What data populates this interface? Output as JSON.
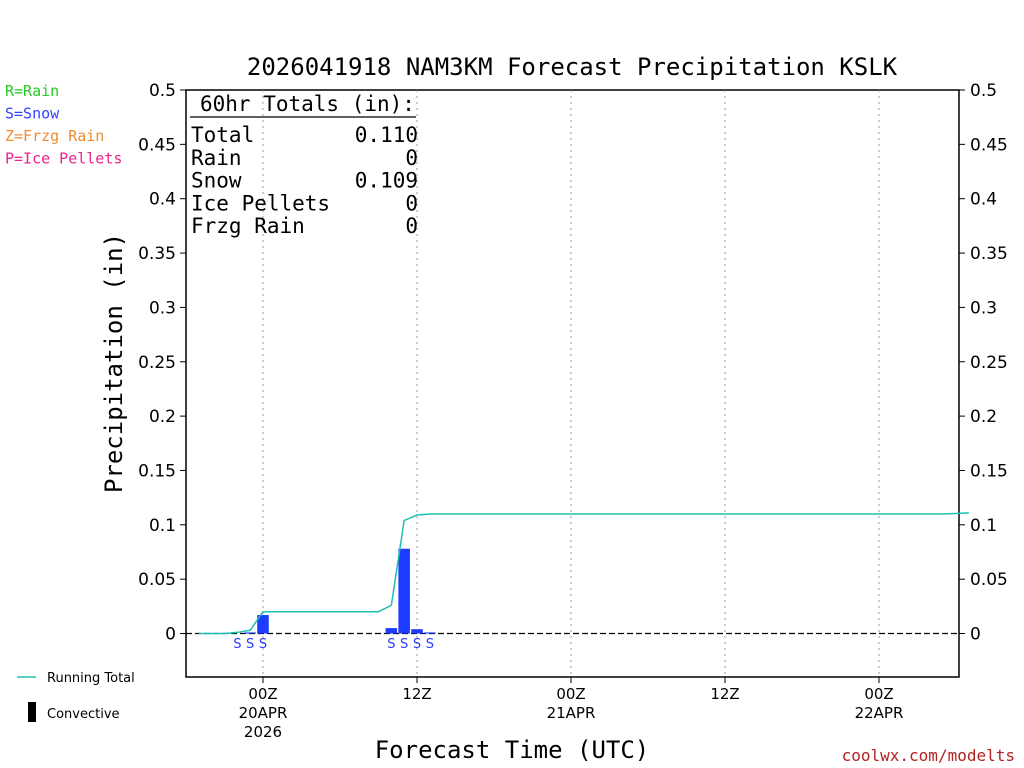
{
  "chart_data": {
    "type": "bar",
    "title": "2026041918 NAM3KM Forecast Precipitation KSLK",
    "xlabel": "Forecast Time (UTC)",
    "ylabel": "Precipitation (in)",
    "ylim": [
      -0.04,
      0.5
    ],
    "yticks": [
      0,
      0.05,
      0.1,
      0.15,
      0.2,
      0.25,
      0.3,
      0.35,
      0.4,
      0.45,
      0.5
    ],
    "ytick_labels": [
      "0",
      "0.05",
      "0.1",
      "0.15",
      "0.2",
      "0.25",
      "0.3",
      "0.35",
      "0.4",
      "0.45",
      "0.5"
    ],
    "x_unit": "hours from 00Z 20APR 2026",
    "xlim": [
      -5,
      55
    ],
    "time_ticks": [
      {
        "hour": 0,
        "lines": [
          "00Z",
          "20APR",
          "2026"
        ]
      },
      {
        "hour": 12,
        "lines": [
          "12Z"
        ]
      },
      {
        "hour": 24,
        "lines": [
          "00Z",
          "21APR"
        ]
      },
      {
        "hour": 36,
        "lines": [
          "12Z"
        ]
      },
      {
        "hour": 48,
        "lines": [
          "00Z",
          "22APR"
        ]
      }
    ],
    "gridlines": "vertical dotted at time ticks",
    "series": [
      {
        "name": "Convective",
        "color": "#1e3cff",
        "bars": [
          {
            "hour": -1,
            "value": 0.001
          },
          {
            "hour": 0,
            "value": 0.017
          },
          {
            "hour": 10,
            "value": 0.005
          },
          {
            "hour": 11,
            "value": 0.078
          },
          {
            "hour": 12,
            "value": 0.004
          },
          {
            "hour": 13,
            "value": 0.001
          }
        ]
      },
      {
        "name": "Running Total",
        "color": "#20c0b0",
        "line": [
          [
            -5,
            0
          ],
          [
            -3,
            0
          ],
          [
            -2,
            0.001
          ],
          [
            -1,
            0.003
          ],
          [
            0,
            0.02
          ],
          [
            5,
            0.02
          ],
          [
            9,
            0.02
          ],
          [
            10,
            0.026
          ],
          [
            11,
            0.104
          ],
          [
            12,
            0.109
          ],
          [
            13,
            0.11
          ],
          [
            30,
            0.11
          ],
          [
            45,
            0.11
          ],
          [
            53,
            0.11
          ],
          [
            55,
            0.111
          ]
        ]
      }
    ],
    "precip_type_markers": [
      {
        "hour": -2,
        "type": "S"
      },
      {
        "hour": -1,
        "type": "S"
      },
      {
        "hour": 0,
        "type": "S"
      },
      {
        "hour": 10,
        "type": "S"
      },
      {
        "hour": 11,
        "type": "S"
      },
      {
        "hour": 12,
        "type": "S"
      },
      {
        "hour": 13,
        "type": "S"
      }
    ],
    "precip_type_legend": [
      {
        "label": "R=Rain",
        "color": "#22cc22"
      },
      {
        "label": "S=Snow",
        "color": "#3344ff"
      },
      {
        "label": "Z=Frzg Rain",
        "color": "#f08a30"
      },
      {
        "label": "P=Ice Pellets",
        "color": "#ee2288"
      }
    ],
    "totals": {
      "header": "60hr Totals (in):",
      "rows": [
        {
          "label": "Total",
          "value": "0.110"
        },
        {
          "label": "Rain",
          "value": "0"
        },
        {
          "label": "Snow",
          "value": "0.109"
        },
        {
          "label": "Ice Pellets",
          "value": "0"
        },
        {
          "label": "Frzg Rain",
          "value": "0"
        }
      ]
    },
    "bottom_legend": [
      {
        "label": "Running Total",
        "symbol": "line",
        "color": "#20c0b0"
      },
      {
        "label": "Convective",
        "symbol": "bar",
        "color": "#000000"
      }
    ],
    "credit": "coolwx.com/modelts"
  }
}
